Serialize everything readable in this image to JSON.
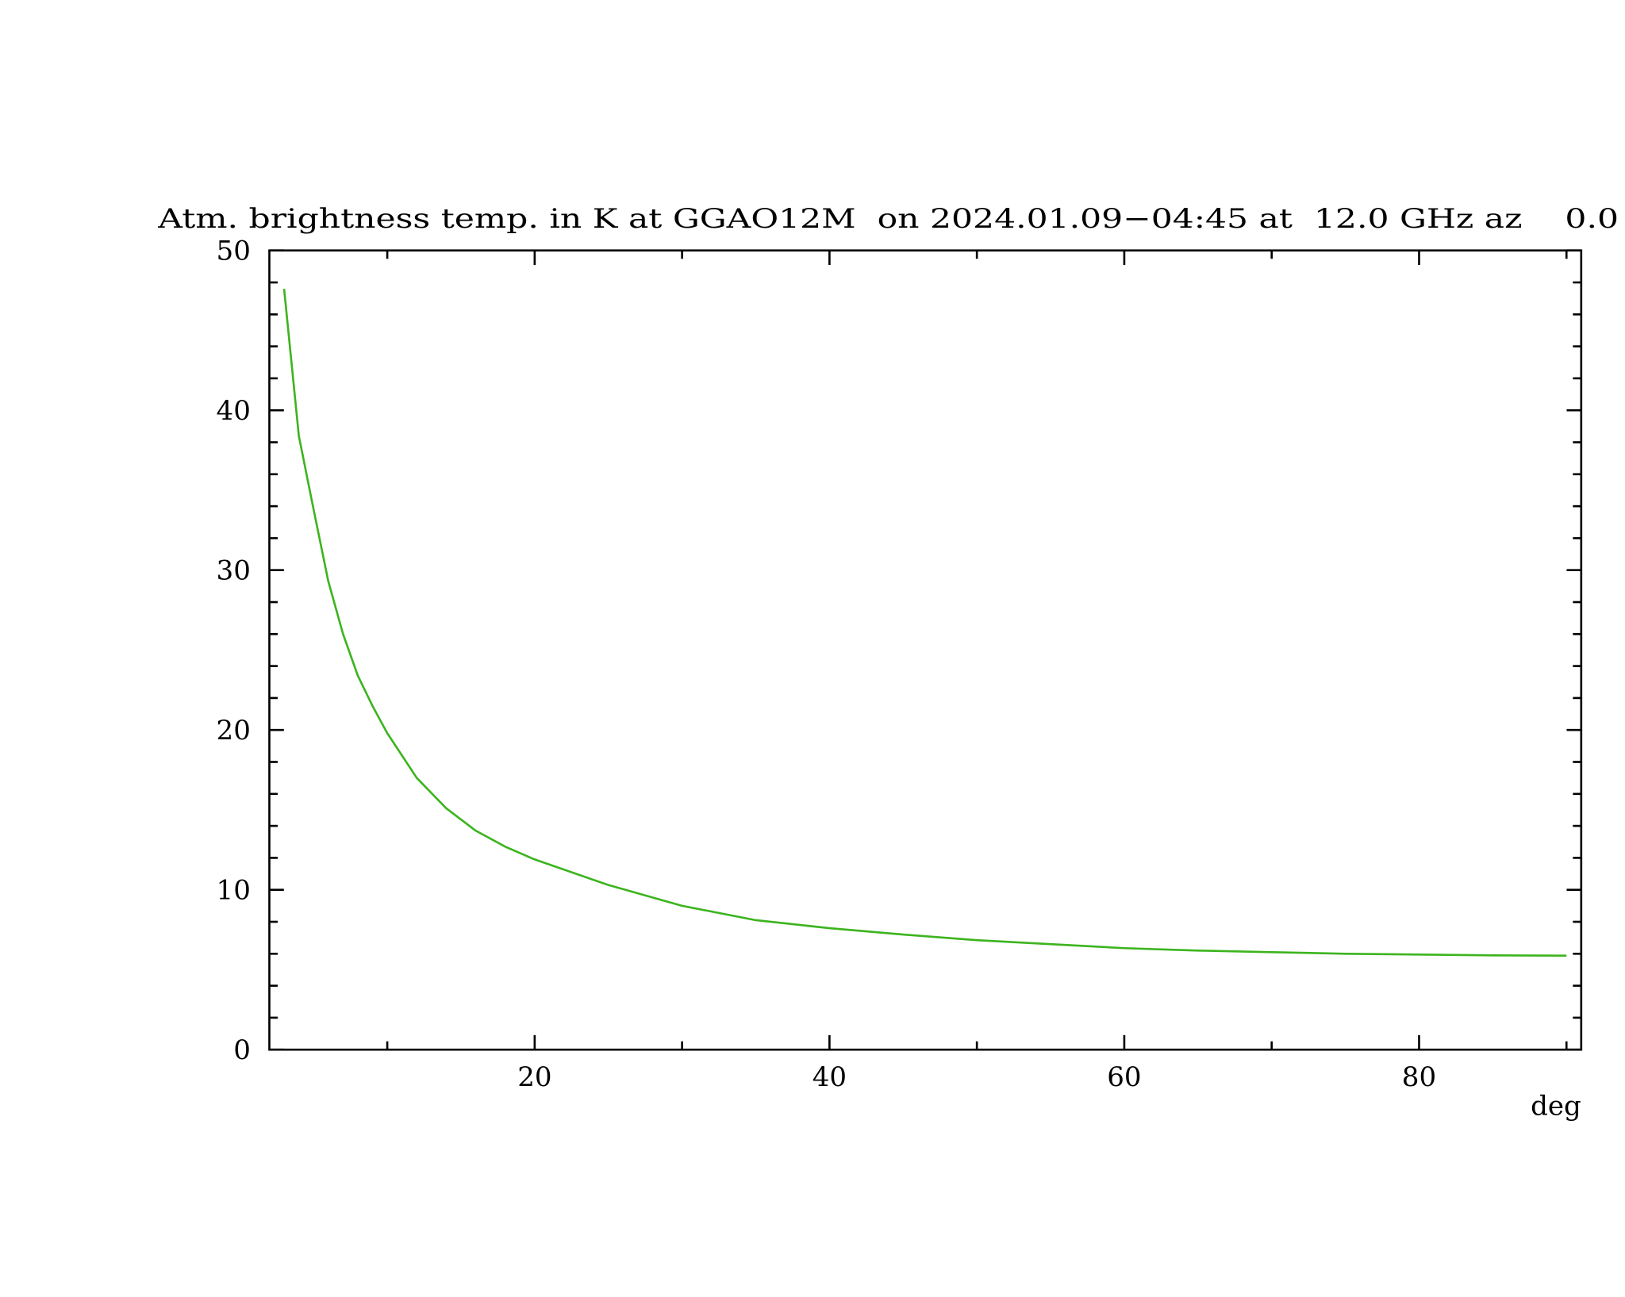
{
  "chart_data": {
    "type": "line",
    "title": "Atm. brightness temp. in K at GGAO12M  on 2024.01.09−04:45 at  12.0 GHz az    0.0",
    "x_label": "deg",
    "x": [
      3,
      4,
      5,
      6,
      7,
      8,
      9,
      10,
      12,
      14,
      16,
      18,
      20,
      25,
      30,
      35,
      40,
      45,
      50,
      55,
      60,
      65,
      70,
      75,
      80,
      85,
      90
    ],
    "values": [
      47.6,
      38.4,
      33.8,
      29.3,
      26.0,
      23.4,
      21.5,
      19.8,
      17.0,
      15.1,
      13.7,
      12.7,
      11.9,
      10.3,
      9.0,
      8.1,
      7.6,
      7.2,
      6.85,
      6.6,
      6.35,
      6.2,
      6.1,
      6.0,
      5.95,
      5.9,
      5.88
    ],
    "color": "#3cb41e",
    "xlim": [
      2,
      91
    ],
    "xticks": [
      20,
      40,
      60,
      80
    ],
    "xticks_minor": [
      10,
      30,
      50,
      70,
      90
    ],
    "ylim": [
      0,
      50
    ],
    "yticks": [
      0,
      10,
      20,
      30,
      40,
      50
    ],
    "yticks_minor": [
      2,
      4,
      6,
      8,
      12,
      14,
      16,
      18,
      22,
      24,
      26,
      28,
      32,
      34,
      36,
      38,
      42,
      44,
      46,
      48
    ]
  }
}
